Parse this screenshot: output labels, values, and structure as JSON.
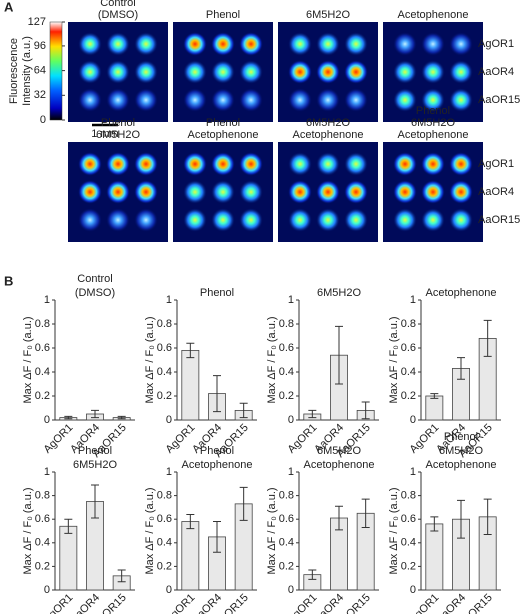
{
  "panel_a": {
    "label": "A",
    "colorbar": {
      "label": [
        "Fluorescence",
        "Intensity (a.u.)"
      ],
      "ticks": [
        0,
        32,
        64,
        96,
        127
      ],
      "lim": [
        0,
        127
      ]
    },
    "scale_bar": "1 mm",
    "rows": [
      "AgOR1",
      "AaOR4",
      "AaOR15"
    ],
    "panels": [
      {
        "title": [
          "Control",
          "(DMSO)"
        ]
      },
      {
        "title": [
          "Phenol"
        ]
      },
      {
        "title": [
          "6M5H2O"
        ]
      },
      {
        "title": [
          "Acetophenone"
        ]
      },
      {
        "title": [
          "Phenol",
          "6M5H2O"
        ]
      },
      {
        "title": [
          "Phenol",
          "Acetophenone"
        ]
      },
      {
        "title": [
          "6M5H2O",
          "Acetophenone"
        ]
      },
      {
        "title": [
          "Phenol",
          "6M5H2O",
          "Acetophenone"
        ]
      }
    ]
  },
  "panel_b_label": "B",
  "chart_data": [
    {
      "type": "bar",
      "title": [
        "Control",
        "(DMSO)"
      ],
      "ylabel": "Max ΔF / F₀ (a.u.)",
      "categories": [
        "AgOR1",
        "AaOR4",
        "AaOR15"
      ],
      "values": [
        0.02,
        0.05,
        0.02
      ],
      "errors": [
        0.01,
        0.03,
        0.01
      ],
      "color": "#e8e8e8",
      "ylim": [
        0,
        1
      ],
      "yticks": [
        0,
        0.2,
        0.4,
        0.6,
        0.8,
        1
      ]
    },
    {
      "type": "bar",
      "title": [
        "Phenol"
      ],
      "ylabel": "Max ΔF / F₀ (a.u.)",
      "categories": [
        "AgOR1",
        "AaOR4",
        "AaOR15"
      ],
      "values": [
        0.58,
        0.22,
        0.08
      ],
      "errors": [
        0.06,
        0.15,
        0.06
      ],
      "color": "#e8e8e8",
      "ylim": [
        0,
        1
      ],
      "yticks": [
        0,
        0.2,
        0.4,
        0.6,
        0.8,
        1
      ]
    },
    {
      "type": "bar",
      "title": [
        "6M5H2O"
      ],
      "ylabel": "Max ΔF / F₀ (a.u.)",
      "categories": [
        "AgOR1",
        "AaOR4",
        "AaOR15"
      ],
      "values": [
        0.05,
        0.54,
        0.08
      ],
      "errors": [
        0.03,
        0.24,
        0.07
      ],
      "color": "#e8e8e8",
      "ylim": [
        0,
        1
      ],
      "yticks": [
        0,
        0.2,
        0.4,
        0.6,
        0.8,
        1
      ]
    },
    {
      "type": "bar",
      "title": [
        "Acetophenone"
      ],
      "ylabel": "Max ΔF / F₀ (a.u.)",
      "categories": [
        "AgOR1",
        "AaOR4",
        "AaOR15"
      ],
      "values": [
        0.2,
        0.43,
        0.68
      ],
      "errors": [
        0.02,
        0.09,
        0.15
      ],
      "color": "#e8e8e8",
      "ylim": [
        0,
        1
      ],
      "yticks": [
        0,
        0.2,
        0.4,
        0.6,
        0.8,
        1
      ]
    },
    {
      "type": "bar",
      "title": [
        "Phenol",
        "6M5H2O"
      ],
      "ylabel": "Max ΔF / F₀ (a.u.)",
      "categories": [
        "AgOR1",
        "AaOR4",
        "AaOR15"
      ],
      "values": [
        0.54,
        0.75,
        0.12
      ],
      "errors": [
        0.06,
        0.14,
        0.05
      ],
      "color": "#e8e8e8",
      "ylim": [
        0,
        1
      ],
      "yticks": [
        0,
        0.2,
        0.4,
        0.6,
        0.8,
        1
      ]
    },
    {
      "type": "bar",
      "title": [
        "Phenol",
        "Acetophenone"
      ],
      "ylabel": "Max ΔF / F₀ (a.u.)",
      "categories": [
        "AgOR1",
        "AaOR4",
        "AaOR15"
      ],
      "values": [
        0.58,
        0.45,
        0.73
      ],
      "errors": [
        0.06,
        0.13,
        0.14
      ],
      "color": "#e8e8e8",
      "ylim": [
        0,
        1
      ],
      "yticks": [
        0,
        0.2,
        0.4,
        0.6,
        0.8,
        1
      ]
    },
    {
      "type": "bar",
      "title": [
        "6M5H2O",
        "Acetophenone"
      ],
      "ylabel": "Max ΔF / F₀ (a.u.)",
      "categories": [
        "AgOR1",
        "AaOR4",
        "AaOR15"
      ],
      "values": [
        0.13,
        0.61,
        0.65
      ],
      "errors": [
        0.04,
        0.1,
        0.12
      ],
      "color": "#e8e8e8",
      "ylim": [
        0,
        1
      ],
      "yticks": [
        0,
        0.2,
        0.4,
        0.6,
        0.8,
        1
      ]
    },
    {
      "type": "bar",
      "title": [
        "Phenol",
        "6M5H2O",
        "Acetophenone"
      ],
      "ylabel": "Max ΔF / F₀ (a.u.)",
      "categories": [
        "AgOR1",
        "AaOR4",
        "AaOR15"
      ],
      "values": [
        0.56,
        0.6,
        0.62
      ],
      "errors": [
        0.06,
        0.16,
        0.15
      ],
      "color": "#e8e8e8",
      "ylim": [
        0,
        1
      ],
      "yticks": [
        0,
        0.2,
        0.4,
        0.6,
        0.8,
        1
      ]
    }
  ]
}
